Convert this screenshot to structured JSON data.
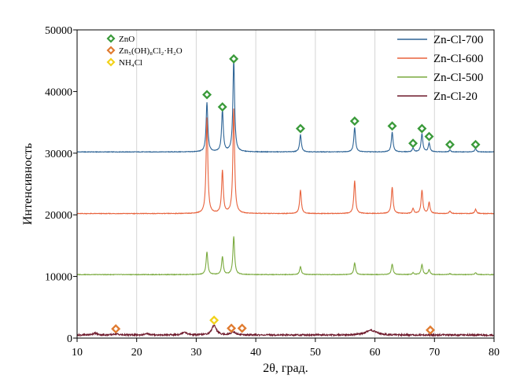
{
  "chart_data": {
    "type": "line",
    "xlabel": "2θ, град.",
    "ylabel": "Интенсивность",
    "xlim": [
      10,
      80
    ],
    "ylim": [
      0,
      50000
    ],
    "x_ticks": [
      10,
      20,
      30,
      40,
      50,
      60,
      70,
      80
    ],
    "y_ticks": [
      0,
      10000,
      20000,
      30000,
      40000,
      50000
    ],
    "grid": "vertical",
    "legend_position": "top-right",
    "series": [
      {
        "name": "Zn-Cl-700",
        "color": "#2e6496",
        "baseline": 30200,
        "peaks": [
          {
            "x": 31.8,
            "h": 8000
          },
          {
            "x": 34.4,
            "h": 6800
          },
          {
            "x": 36.3,
            "h": 15000
          },
          {
            "x": 47.5,
            "h": 2800
          },
          {
            "x": 56.6,
            "h": 4000
          },
          {
            "x": 62.9,
            "h": 3200
          },
          {
            "x": 66.4,
            "h": 600
          },
          {
            "x": 67.9,
            "h": 3000
          },
          {
            "x": 69.1,
            "h": 1400
          },
          {
            "x": 72.6,
            "h": 300
          },
          {
            "x": 76.9,
            "h": 500
          }
        ]
      },
      {
        "name": "Zn-Cl-600",
        "color": "#e8623c",
        "baseline": 20200,
        "peaks": [
          {
            "x": 31.8,
            "h": 15500
          },
          {
            "x": 34.4,
            "h": 6900
          },
          {
            "x": 36.3,
            "h": 17000
          },
          {
            "x": 47.5,
            "h": 3800
          },
          {
            "x": 56.6,
            "h": 5300
          },
          {
            "x": 62.9,
            "h": 4300
          },
          {
            "x": 66.4,
            "h": 800
          },
          {
            "x": 67.9,
            "h": 3800
          },
          {
            "x": 69.1,
            "h": 1800
          },
          {
            "x": 72.6,
            "h": 400
          },
          {
            "x": 76.9,
            "h": 700
          }
        ]
      },
      {
        "name": "Zn-Cl-500",
        "color": "#7aaa3e",
        "baseline": 10300,
        "peaks": [
          {
            "x": 31.8,
            "h": 3700
          },
          {
            "x": 34.4,
            "h": 2900
          },
          {
            "x": 36.3,
            "h": 6200
          },
          {
            "x": 47.5,
            "h": 1300
          },
          {
            "x": 56.6,
            "h": 1900
          },
          {
            "x": 62.9,
            "h": 1700
          },
          {
            "x": 66.4,
            "h": 300
          },
          {
            "x": 67.9,
            "h": 1600
          },
          {
            "x": 69.1,
            "h": 800
          },
          {
            "x": 72.6,
            "h": 150
          },
          {
            "x": 76.9,
            "h": 300
          }
        ]
      },
      {
        "name": "Zn-Cl-20",
        "color": "#6e1a2c",
        "baseline": 500,
        "peaks": [
          {
            "x": 13.0,
            "h": 300
          },
          {
            "x": 16.5,
            "h": 200
          },
          {
            "x": 21.8,
            "h": 200
          },
          {
            "x": 28.0,
            "h": 500
          },
          {
            "x": 33.0,
            "h": 1600
          },
          {
            "x": 36.2,
            "h": 500
          },
          {
            "x": 59.3,
            "h": 800
          }
        ]
      }
    ],
    "phase_legend": [
      {
        "label": "ZnO",
        "color": "#3a9a3a"
      },
      {
        "label": "Zn₅(OH)₈Cl₂·H₂O",
        "color": "#e07b30"
      },
      {
        "label": "NH₄Cl",
        "color": "#f2d21a"
      }
    ],
    "markers": [
      {
        "phase": "ZnO",
        "x": 31.8,
        "y": 39500
      },
      {
        "phase": "ZnO",
        "x": 34.4,
        "y": 37500
      },
      {
        "phase": "ZnO",
        "x": 36.3,
        "y": 45300
      },
      {
        "phase": "ZnO",
        "x": 47.5,
        "y": 34000
      },
      {
        "phase": "ZnO",
        "x": 56.6,
        "y": 35200
      },
      {
        "phase": "ZnO",
        "x": 62.9,
        "y": 34400
      },
      {
        "phase": "ZnO",
        "x": 66.4,
        "y": 31600
      },
      {
        "phase": "ZnO",
        "x": 67.9,
        "y": 34000
      },
      {
        "phase": "ZnO",
        "x": 69.1,
        "y": 32700
      },
      {
        "phase": "ZnO",
        "x": 72.6,
        "y": 31400
      },
      {
        "phase": "ZnO",
        "x": 76.9,
        "y": 31400
      },
      {
        "phase": "Zn₅(OH)₈Cl₂·H₂O",
        "x": 16.5,
        "y": 1500
      },
      {
        "phase": "Zn₅(OH)₈Cl₂·H₂O",
        "x": 35.9,
        "y": 1600
      },
      {
        "phase": "Zn₅(OH)₈Cl₂·H₂O",
        "x": 37.7,
        "y": 1600
      },
      {
        "phase": "Zn₅(OH)₈Cl₂·H₂O",
        "x": 69.3,
        "y": 1300
      },
      {
        "phase": "NH₄Cl",
        "x": 33.0,
        "y": 2900
      }
    ]
  }
}
